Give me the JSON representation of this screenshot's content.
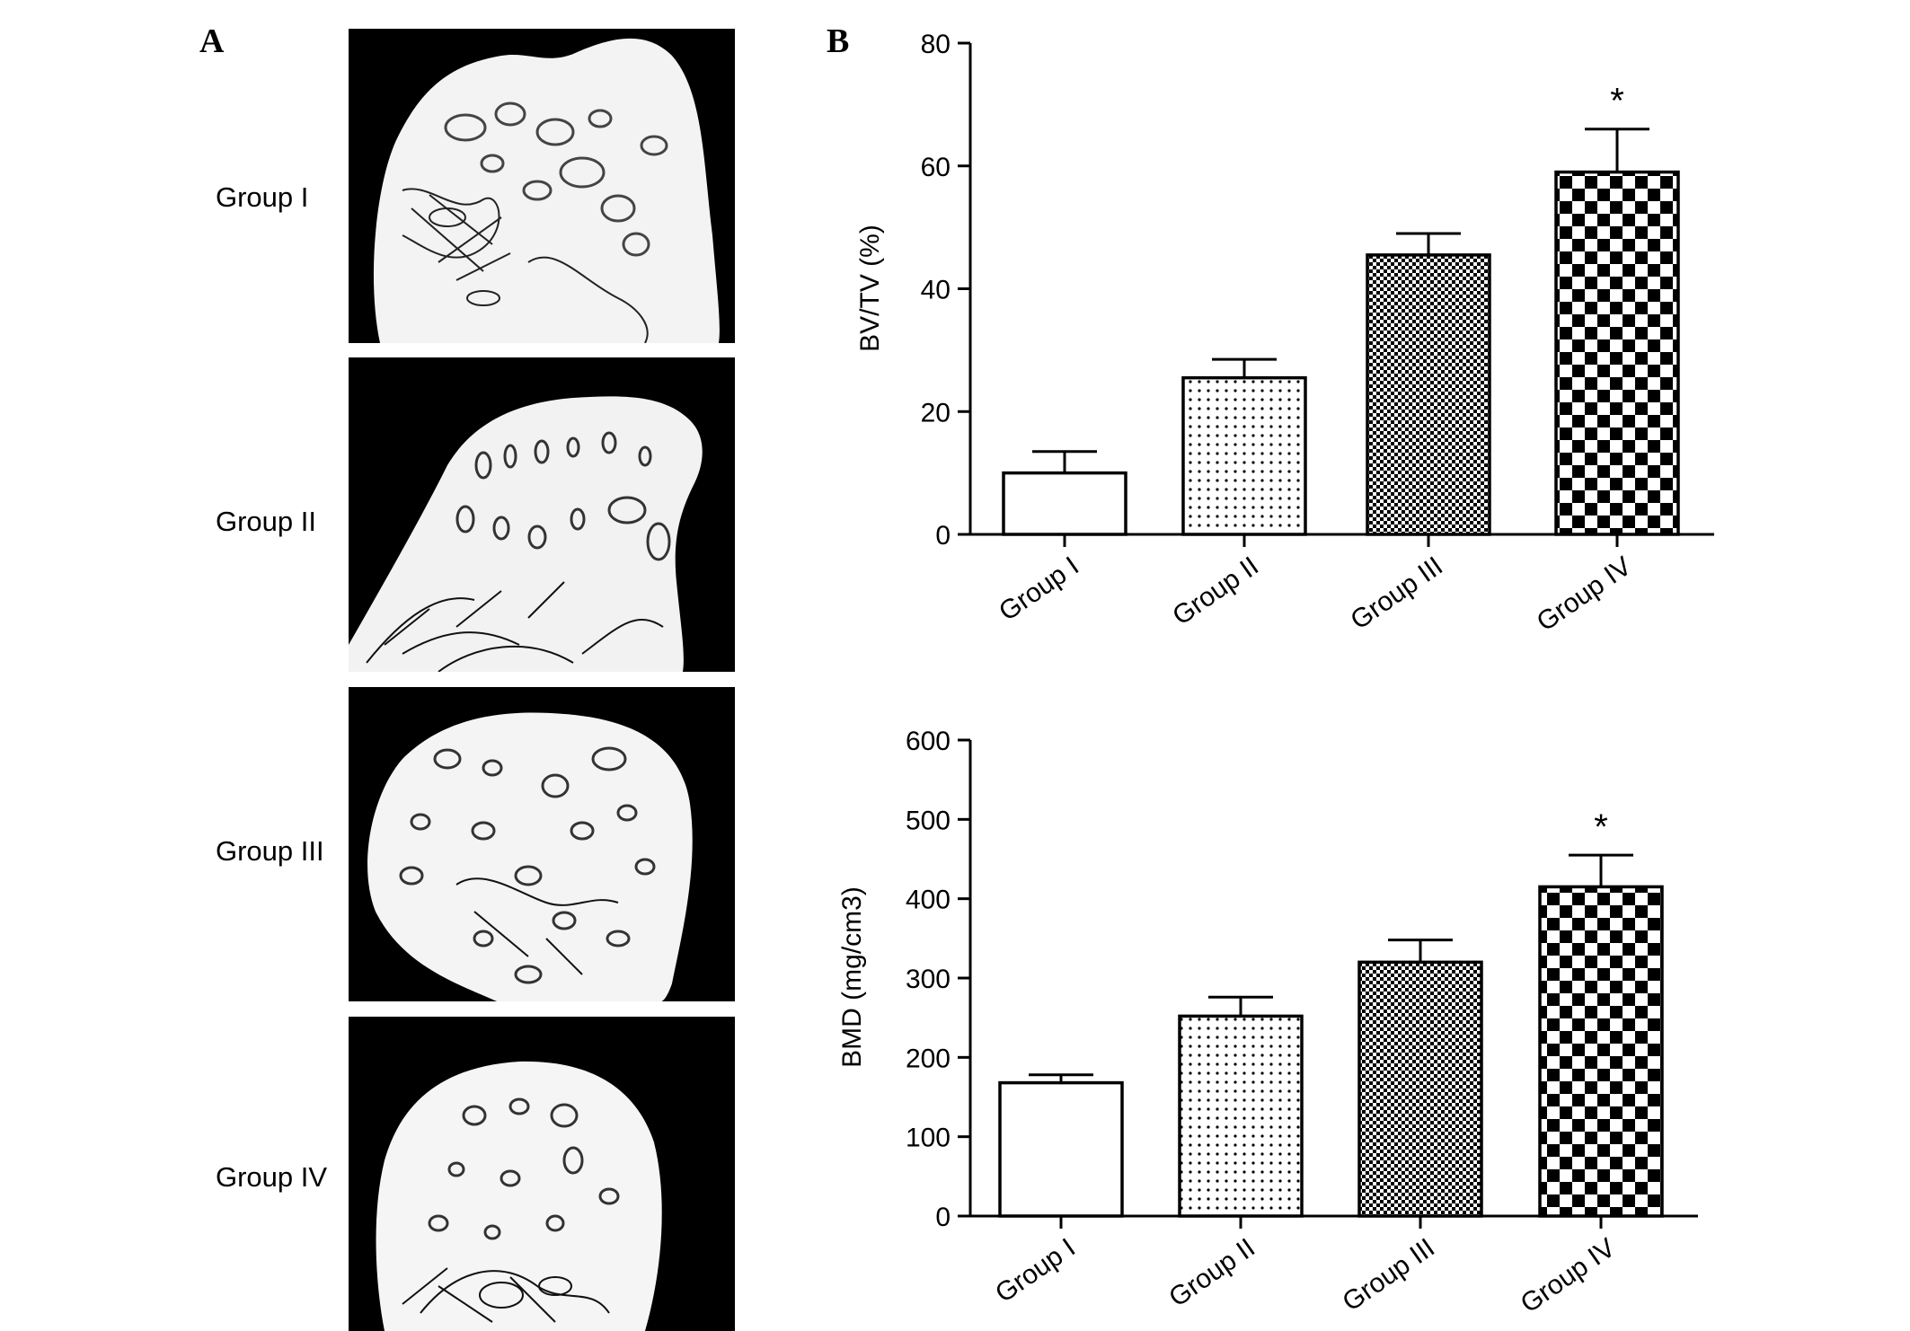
{
  "panels": {
    "a_label": "A",
    "b_label": "B"
  },
  "panel_a": {
    "groups": [
      "Group I",
      "Group II",
      "Group III",
      "Group IV"
    ]
  },
  "chart_data": [
    {
      "type": "bar",
      "categories": [
        "Group I",
        "Group II",
        "Group III",
        "Group IV"
      ],
      "values": [
        10,
        25.5,
        45.5,
        59
      ],
      "errors": [
        3.5,
        3,
        3.5,
        7
      ],
      "significance": [
        "",
        "",
        "",
        "*"
      ],
      "ylabel": "BV/TV (%)",
      "ylim": [
        0,
        80
      ],
      "yticks": [
        0,
        20,
        40,
        60,
        80
      ],
      "patterns": [
        "none",
        "dots",
        "fine-check",
        "coarse-check"
      ]
    },
    {
      "type": "bar",
      "categories": [
        "Group I",
        "Group II",
        "Group III",
        "Group IV"
      ],
      "values": [
        168,
        252,
        320,
        415
      ],
      "errors": [
        10,
        24,
        28,
        40
      ],
      "significance": [
        "",
        "",
        "",
        "*"
      ],
      "ylabel": "BMD (mg/cm3)",
      "ylim": [
        0,
        600
      ],
      "yticks": [
        0,
        100,
        200,
        300,
        400,
        500,
        600
      ],
      "patterns": [
        "none",
        "dots",
        "fine-check",
        "coarse-check"
      ]
    }
  ]
}
